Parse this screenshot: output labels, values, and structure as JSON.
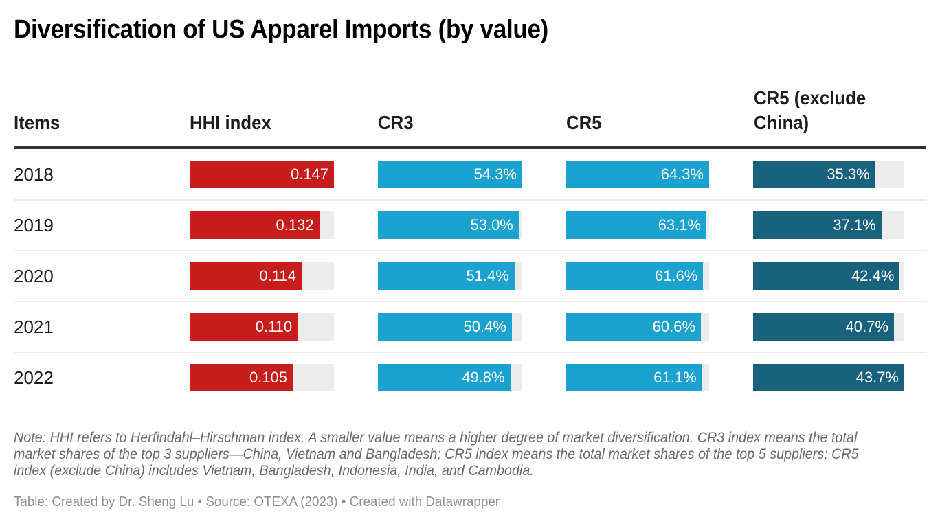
{
  "title": "Diversification of US Apparel Imports (by value)",
  "note": "Note: HHI refers to Herfindahl–Hirschman index. A smaller value means a higher degree of market diversification. CR3 index means the total market shares of the top 3 suppliers—China, Vietnam and Bangladesh; CR5 index means the total market shares of the top 5 suppliers; CR5 index (exclude China) includes Vietnam, Bangladesh, Indonesia, India, and Cambodia.",
  "footer": "Table: Created by Dr. Sheng Lu • Source: OTEXA (2023) • Created with Datawrapper",
  "colors": {
    "hhi": "#c71e1d",
    "cr3": "#1ba2cf",
    "cr5": "#1ba2cf",
    "cr5_excl": "#18627e",
    "track": "#ececec"
  },
  "chart_data": {
    "type": "table",
    "title": "Diversification of US Apparel Imports (by value)",
    "columns": [
      "Items",
      "HHI index",
      "CR3",
      "CR5",
      "CR5 (exclude China)"
    ],
    "categories": [
      "2018",
      "2019",
      "2020",
      "2021",
      "2022"
    ],
    "series": [
      {
        "name": "HHI index",
        "values": [
          0.147,
          0.132,
          0.114,
          0.11,
          0.105
        ],
        "labels": [
          "0.147",
          "0.132",
          "0.114",
          "0.110",
          "0.105"
        ]
      },
      {
        "name": "CR3",
        "values": [
          54.3,
          53.0,
          51.4,
          50.4,
          49.8
        ],
        "labels": [
          "54.3%",
          "53.0%",
          "51.4%",
          "50.4%",
          "49.8%"
        ]
      },
      {
        "name": "CR5",
        "values": [
          64.3,
          63.1,
          61.6,
          60.6,
          61.1
        ],
        "labels": [
          "64.3%",
          "63.1%",
          "61.6%",
          "60.6%",
          "61.1%"
        ]
      },
      {
        "name": "CR5 (exclude China)",
        "values": [
          35.3,
          37.1,
          42.4,
          40.7,
          43.7
        ],
        "labels": [
          "35.3%",
          "37.1%",
          "42.4%",
          "40.7%",
          "43.7%"
        ]
      }
    ]
  }
}
